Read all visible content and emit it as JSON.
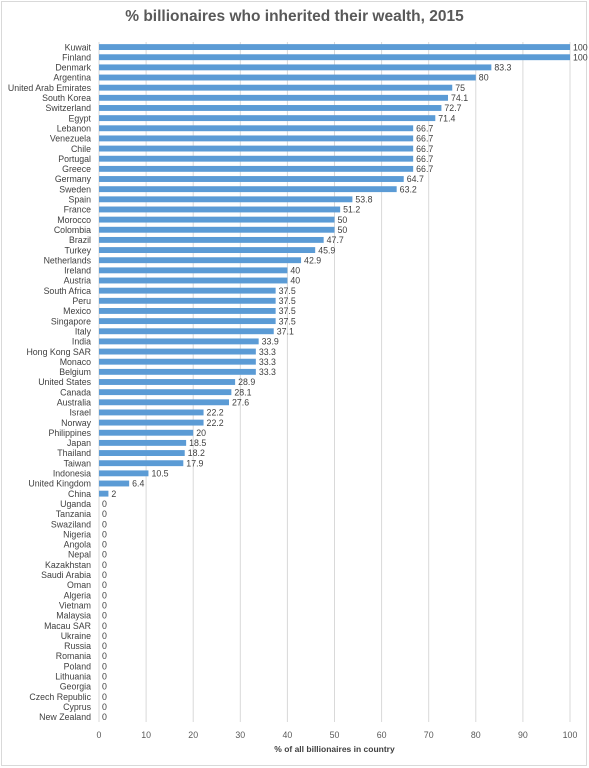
{
  "chart_data": {
    "type": "bar",
    "orientation": "horizontal",
    "title": "% billionaires  who inherited their wealth, 2015",
    "xlabel": "% of all billionaires in country",
    "ylabel": "",
    "xlim": [
      0,
      100
    ],
    "x_ticks": [
      0,
      10,
      20,
      30,
      40,
      50,
      60,
      70,
      80,
      90,
      100
    ],
    "grid": "vertical",
    "bar_color": "#5b9bd5",
    "categories": [
      "Kuwait",
      "Finland",
      "Denmark",
      "Argentina",
      "United Arab Emirates",
      "South Korea",
      "Switzerland",
      "Egypt",
      "Lebanon",
      "Venezuela",
      "Chile",
      "Portugal",
      "Greece",
      "Germany",
      "Sweden",
      "Spain",
      "France",
      "Morocco",
      "Colombia",
      "Brazil",
      "Turkey",
      "Netherlands",
      "Ireland",
      "Austria",
      "South Africa",
      "Peru",
      "Mexico",
      "Singapore",
      "Italy",
      "India",
      "Hong Kong SAR",
      "Monaco",
      "Belgium",
      "United States",
      "Canada",
      "Australia",
      "Israel",
      "Norway",
      "Philippines",
      "Japan",
      "Thailand",
      "Taiwan",
      "Indonesia",
      "United Kingdom",
      "China",
      "Uganda",
      "Tanzania",
      "Swaziland",
      "Nigeria",
      "Angola",
      "Nepal",
      "Kazakhstan",
      "Saudi Arabia",
      "Oman",
      "Algeria",
      "Vietnam",
      "Malaysia",
      "Macau SAR",
      "Ukraine",
      "Russia",
      "Romania",
      "Poland",
      "Lithuania",
      "Georgia",
      "Czech Republic",
      "Cyprus",
      "New Zealand"
    ],
    "values": [
      100,
      100,
      83.3,
      80,
      75,
      74.1,
      72.7,
      71.4,
      66.7,
      66.7,
      66.7,
      66.7,
      66.7,
      64.7,
      63.2,
      53.8,
      51.2,
      50,
      50,
      47.7,
      45.9,
      42.9,
      40,
      40,
      37.5,
      37.5,
      37.5,
      37.5,
      37.1,
      33.9,
      33.3,
      33.3,
      33.3,
      28.9,
      28.1,
      27.6,
      22.2,
      22.2,
      20,
      18.5,
      18.2,
      17.9,
      10.5,
      6.4,
      2,
      0,
      0,
      0,
      0,
      0,
      0,
      0,
      0,
      0,
      0,
      0,
      0,
      0,
      0,
      0,
      0,
      0,
      0,
      0,
      0,
      0,
      0
    ]
  }
}
